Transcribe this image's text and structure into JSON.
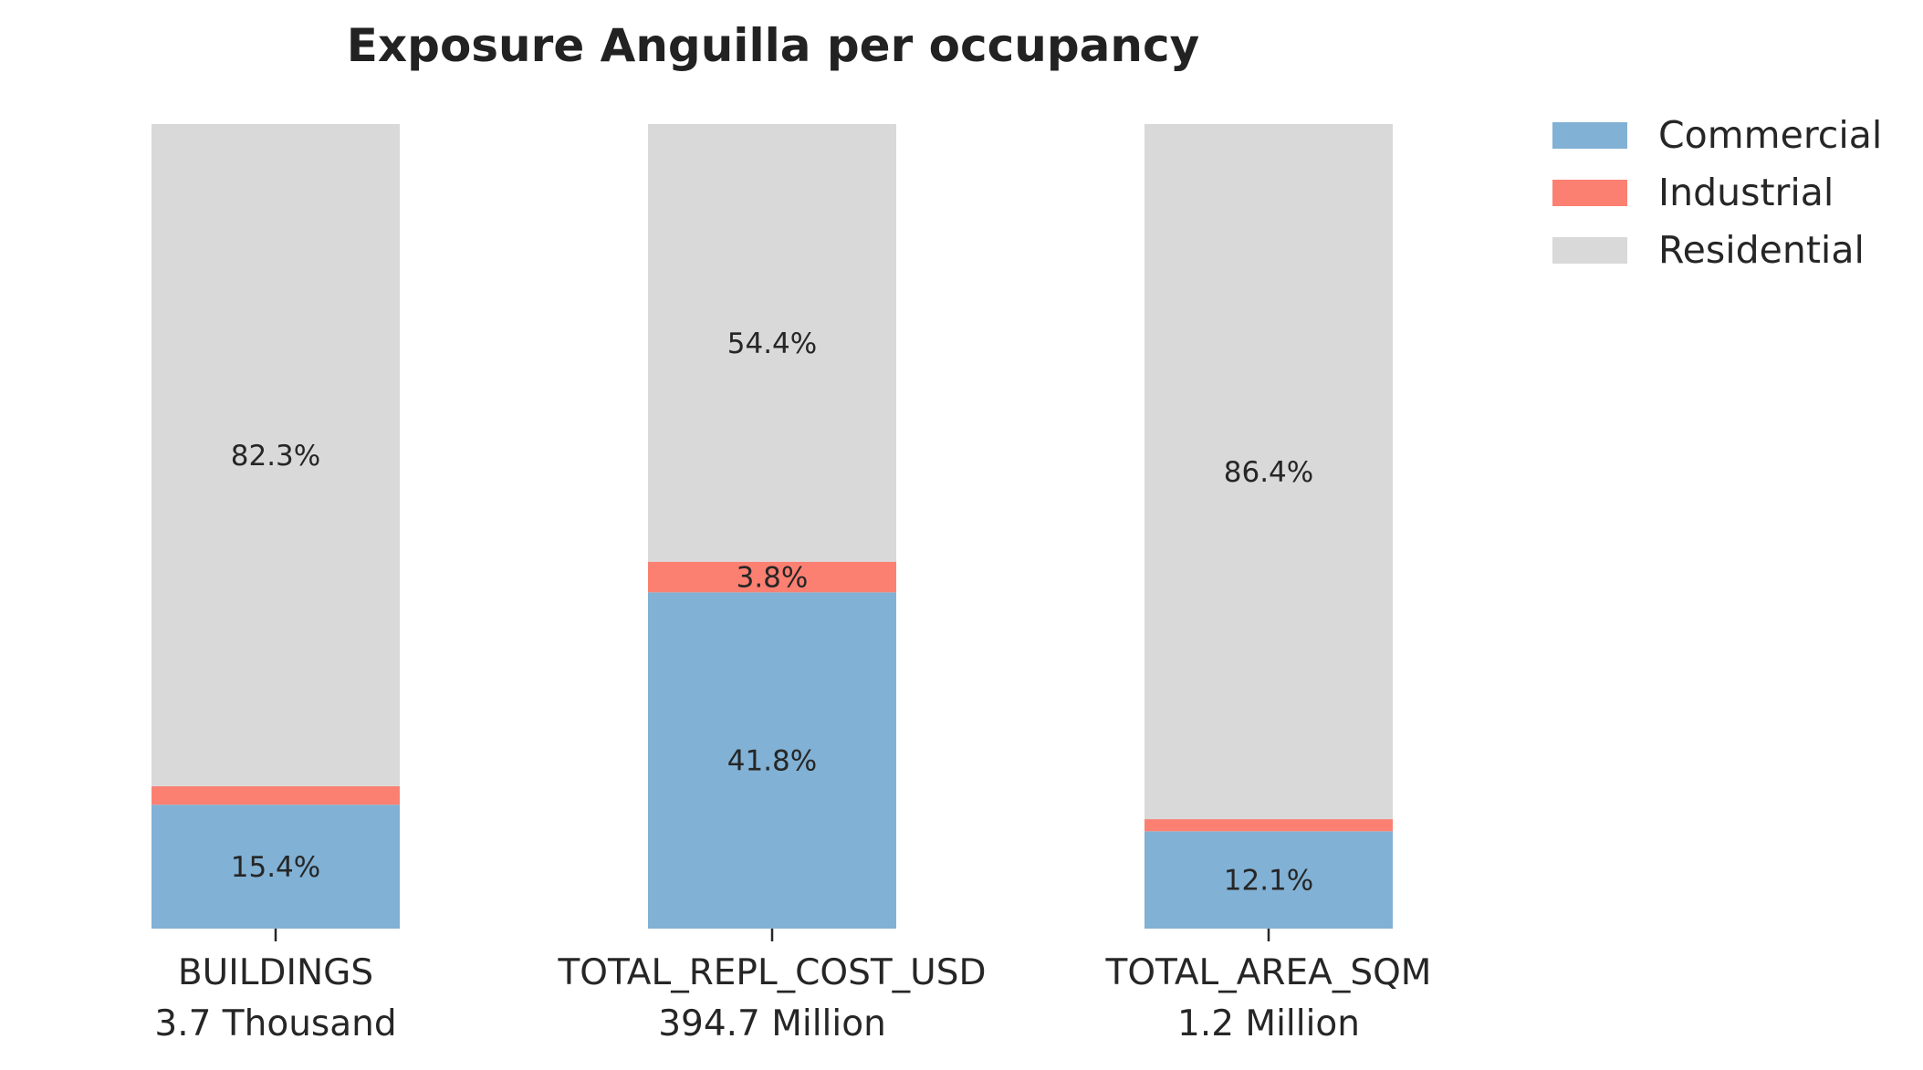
{
  "chart_data": {
    "type": "bar",
    "stacked": true,
    "normalized": true,
    "title": "Exposure Anguilla per occupancy",
    "categories": [
      "BUILDINGS",
      "TOTAL_REPL_COST_USD",
      "TOTAL_AREA_SQM"
    ],
    "category_totals": [
      "3.7 Thousand",
      "394.7 Million",
      "1.2 Million"
    ],
    "ylim": [
      0,
      100
    ],
    "grid": false,
    "legend_position": "top-right",
    "series": [
      {
        "name": "Commercial",
        "color": "#81b1d4",
        "values": [
          15.4,
          41.8,
          12.1
        ],
        "labels": [
          "15.4%",
          "41.8%",
          "12.1%"
        ]
      },
      {
        "name": "Industrial",
        "color": "#fb8072",
        "values": [
          2.3,
          3.8,
          1.5
        ],
        "labels": [
          "",
          "3.8%",
          ""
        ]
      },
      {
        "name": "Residential",
        "color": "#d9d9d9",
        "values": [
          82.3,
          54.4,
          86.4
        ],
        "labels": [
          "82.3%",
          "54.4%",
          "86.4%"
        ]
      }
    ]
  }
}
